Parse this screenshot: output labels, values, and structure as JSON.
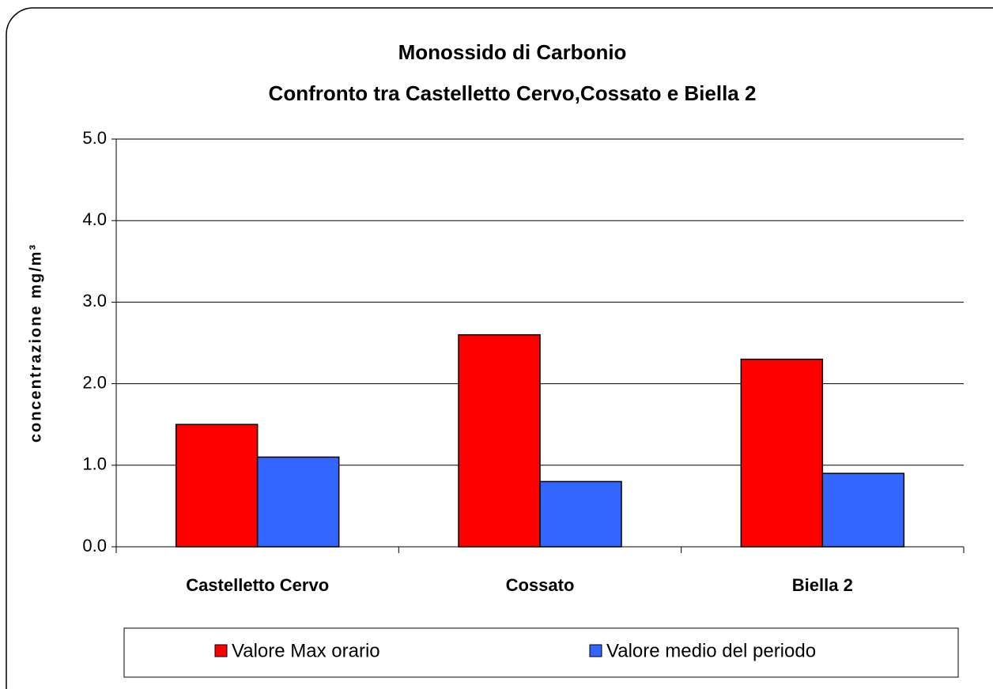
{
  "chart_data": {
    "type": "bar",
    "title": "Monossido di Carbonio",
    "subtitle": "Confronto tra Castelletto Cervo,Cossato e  Biella 2",
    "y_label": "concentrazione mg/m³",
    "categories": [
      "Castelletto Cervo",
      "Cossato",
      "Biella 2"
    ],
    "series": [
      {
        "name": "Valore Max orario",
        "color": "#ff0000",
        "values": [
          1.5,
          2.6,
          2.3
        ]
      },
      {
        "name": "Valore medio del periodo",
        "color": "#3366ff",
        "values": [
          1.1,
          0.8,
          0.9
        ]
      }
    ],
    "ylim": [
      0,
      5
    ],
    "yticks": [
      {
        "value": 0,
        "label": "0.0"
      },
      {
        "value": 1,
        "label": "1.0"
      },
      {
        "value": 2,
        "label": "2.0"
      },
      {
        "value": 3,
        "label": "3.0"
      },
      {
        "value": 4,
        "label": "4.0"
      },
      {
        "value": 5,
        "label": "5.0"
      }
    ],
    "grid": true,
    "legend": "bottom"
  }
}
